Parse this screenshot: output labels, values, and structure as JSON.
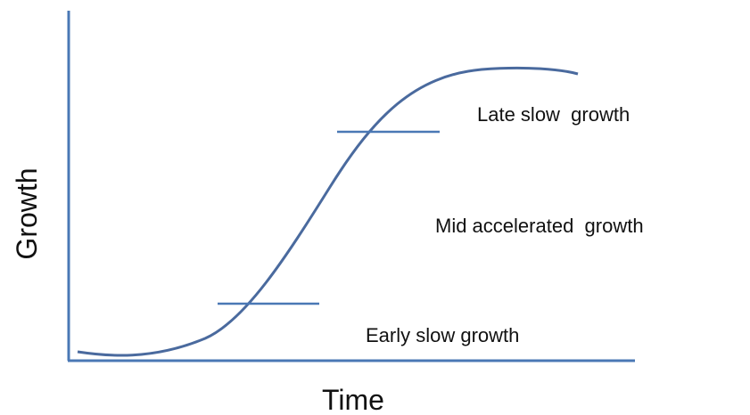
{
  "axes": {
    "x_label": "Time",
    "y_label": "Growth"
  },
  "phases": [
    "Late slow  growth",
    "Mid accelerated  growth",
    "Early slow growth"
  ]
}
